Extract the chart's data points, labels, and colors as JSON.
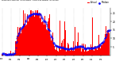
{
  "bar_color": "#ff0000",
  "median_color": "#0000ff",
  "background_color": "#ffffff",
  "grid_color": "#aaaaaa",
  "ylim": [
    0,
    28
  ],
  "y_ticks": [
    5,
    10,
    15,
    20,
    25
  ],
  "n_points": 288,
  "seed": 17,
  "legend_actual": "Actual",
  "legend_median": "Median"
}
